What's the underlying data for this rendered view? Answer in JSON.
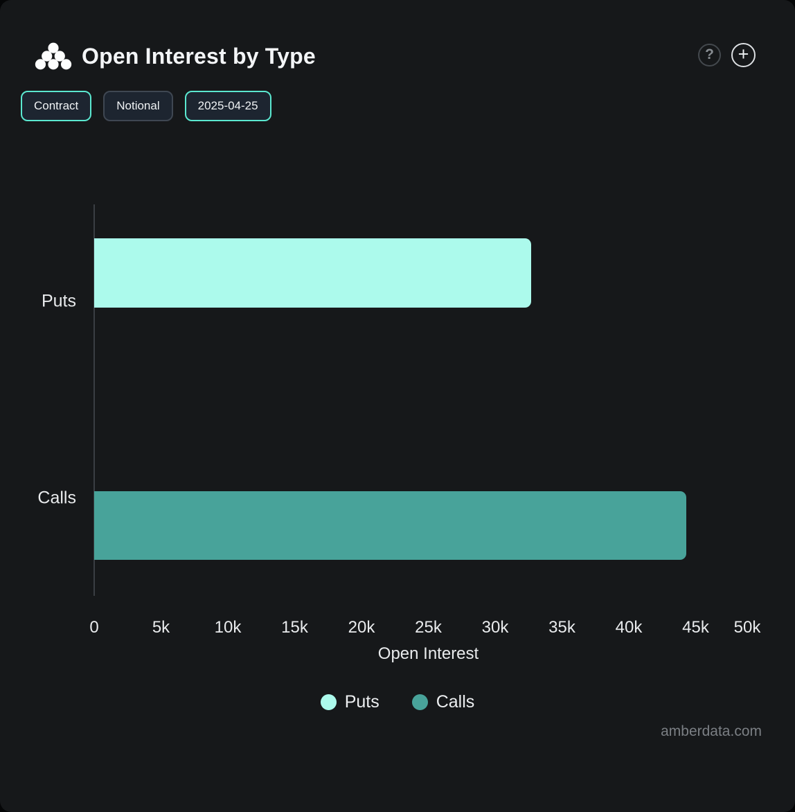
{
  "header": {
    "title": "Open Interest by Type",
    "help_glyph": "?",
    "add_glyph": "+"
  },
  "toolbar": {
    "buttons": [
      {
        "label": "Contract",
        "active": true
      },
      {
        "label": "Notional",
        "active": false
      },
      {
        "label": "2025-04-25",
        "active": true
      }
    ]
  },
  "chart_data": {
    "type": "bar",
    "orientation": "horizontal",
    "title": "Open Interest by Type",
    "categories": [
      "Puts",
      "Calls"
    ],
    "series": [
      {
        "name": "Puts",
        "value": 32700,
        "color": "#ACFAEC"
      },
      {
        "name": "Calls",
        "value": 44300,
        "color": "#48A39A"
      }
    ],
    "xlabel": "Open Interest",
    "xlim": [
      0,
      50000
    ],
    "x_ticks": [
      {
        "value": 0,
        "label": "0"
      },
      {
        "value": 5000,
        "label": "5k"
      },
      {
        "value": 10000,
        "label": "10k"
      },
      {
        "value": 15000,
        "label": "15k"
      },
      {
        "value": 20000,
        "label": "20k"
      },
      {
        "value": 25000,
        "label": "25k"
      },
      {
        "value": 30000,
        "label": "30k"
      },
      {
        "value": 35000,
        "label": "35k"
      },
      {
        "value": 40000,
        "label": "40k"
      },
      {
        "value": 45000,
        "label": "45k"
      },
      {
        "value": 50000,
        "label": "50k"
      }
    ],
    "grid": false,
    "legend_position": "bottom",
    "legend": [
      "Puts",
      "Calls"
    ]
  },
  "footer": {
    "watermark": "amberdata.com"
  },
  "colors": {
    "card_background": "#16181A",
    "accent_teal": "#5BE8D0",
    "puts_bar": "#ACFAEC",
    "calls_bar": "#48A39A",
    "axis_line": "#3A3E43",
    "text_primary": "#F3F5F7",
    "text_muted": "#7B7F84"
  }
}
